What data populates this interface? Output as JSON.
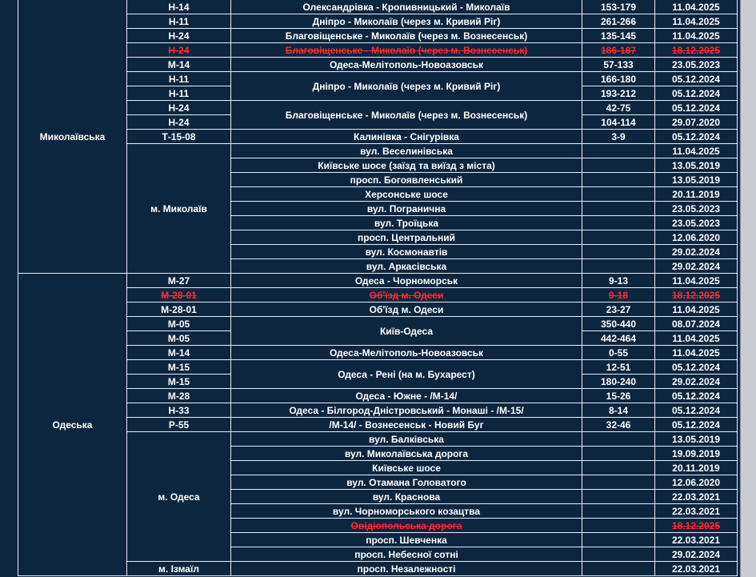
{
  "regions": [
    {
      "name": "Миколаївська",
      "items": [
        {
          "road": "Н-14",
          "route": "Олександрівка - Кропивницький - Миколаїв",
          "km": "153-179",
          "date": "11.04.2025"
        },
        {
          "road": "Н-11",
          "route": "Дніпро - Миколаїв (через м. Кривий Ріг)",
          "km": "261-266",
          "date": "11.04.2025"
        },
        {
          "road": "Н-24",
          "route": "Благовіщенське - Миколаїв (через м. Вознесенськ)",
          "km": "135-145",
          "date": "11.04.2025"
        },
        {
          "road": "Н-24",
          "route": "Благовіщенське - Миколаїв (через м. Вознесенськ)",
          "km": "186-187",
          "date": "18.12.2025",
          "highlight": true
        },
        {
          "road": "М-14",
          "route": "Одеса-Мелітополь-Новоазовськ",
          "km": "57-133",
          "date": "23.05.2023"
        },
        {
          "route": "Дніпро - Миколаїв (через м. Кривий Ріг)",
          "rows": [
            {
              "road": "Н-11",
              "km": "166-180",
              "date": "05.12.2024"
            },
            {
              "road": "Н-11",
              "km": "193-212",
              "date": "05.12.2024"
            }
          ]
        },
        {
          "route": "Благовіщенське - Миколаїв (через м. Вознесенськ)",
          "rows": [
            {
              "road": "Н-24",
              "km": "42-75",
              "date": "05.12.2024"
            },
            {
              "road": "Н-24",
              "km": "104-114",
              "date": "29.07.2020"
            }
          ]
        },
        {
          "road": "Т-15-08",
          "route": "Калинівка - Снігурівка",
          "km": "3-9",
          "date": "05.12.2024"
        },
        {
          "road": "м. Миколаїв",
          "streets": [
            {
              "route": "вул. Веселинівська",
              "date": "11.04.2025"
            },
            {
              "route": "Київське шосе (заїзд та виїзд з міста)",
              "date": "13.05.2019"
            },
            {
              "route": "просп. Богоявленський",
              "date": "13.05.2019"
            },
            {
              "route": "Херсонське шосе",
              "date": "20.11.2019"
            },
            {
              "route": "вул. Погранична",
              "date": "23.05.2023"
            },
            {
              "route": "вул. Троїцька",
              "date": "23.05.2023"
            },
            {
              "route": "просп. Центральний",
              "date": "12.06.2020"
            },
            {
              "route": "вул. Космонавтів",
              "date": "29.02.2024"
            },
            {
              "route": "вул. Аркасівська",
              "date": "29.02.2024"
            }
          ]
        }
      ]
    },
    {
      "name": "Одеська",
      "items": [
        {
          "road": "М-27",
          "route": "Одеса - Чорноморськ",
          "km": "9-13",
          "date": "11.04.2025"
        },
        {
          "road": "М-28-01",
          "route": "Об'їзд м. Одеси",
          "km": "9-18",
          "date": "18.12.2025",
          "highlight": true
        },
        {
          "road": "М-28-01",
          "route": "Об'їзд м. Одеси",
          "km": "23-27",
          "date": "11.04.2025"
        },
        {
          "route": "Київ-Одеса",
          "rows": [
            {
              "road": "М-05",
              "km": "350-440",
              "date": "08.07.2024"
            },
            {
              "road": "М-05",
              "km": "442-464",
              "date": "11.04.2025"
            }
          ]
        },
        {
          "road": "М-14",
          "route": "Одеса-Мелітополь-Новоазовськ",
          "km": "0-55",
          "date": "11.04.2025"
        },
        {
          "route": "Одеса - Рені (на м. Бухарест)",
          "rows": [
            {
              "road": "М-15",
              "km": "12-51",
              "date": "05.12.2024"
            },
            {
              "road": "М-15",
              "km": "180-240",
              "date": "29.02.2024"
            }
          ]
        },
        {
          "road": "М-28",
          "route": "Одеса - Южне - /М-14/",
          "km": "15-26",
          "date": "05.12.2024"
        },
        {
          "road": "Н-33",
          "route": "Одеса - Білгород-Дністровський - Монаші - /М-15/",
          "km": "8-14",
          "date": "05.12.2024"
        },
        {
          "road": "Р-55",
          "route": "/М-14/ - Вознесенськ - Новий Буг",
          "km": "32-46",
          "date": "05.12.2024"
        },
        {
          "road": "м. Одеса",
          "streets": [
            {
              "route": "вул. Балківська",
              "date": "13.05.2019"
            },
            {
              "route": "вул. Миколаївська дорога",
              "date": "19.09.2019"
            },
            {
              "route": "Київське шосе",
              "date": "20.11.2019"
            },
            {
              "route": "вул. Отамана Головатого",
              "date": "12.06.2020"
            },
            {
              "route": "вул. Краснова",
              "date": "22.03.2021"
            },
            {
              "route": "вул. Чорноморського козацтва",
              "date": "22.03.2021"
            },
            {
              "route": "Овідіопольська дорога",
              "date": "18.12.2025",
              "highlight": true
            },
            {
              "route": "просп. Шевченка",
              "date": "22.03.2021"
            },
            {
              "route": "просп. Небесної сотні",
              "date": "29.02.2024"
            }
          ]
        },
        {
          "road": "м. Ізмаїл",
          "streets": [
            {
              "route": "просп. Незалежності",
              "date": "22.03.2021"
            }
          ]
        }
      ]
    }
  ]
}
